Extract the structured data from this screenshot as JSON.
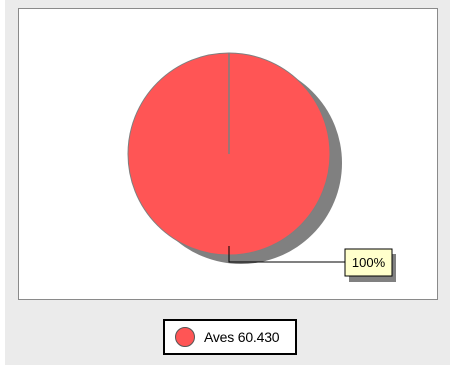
{
  "chart_data": {
    "type": "pie",
    "slices": [
      {
        "label": "Aves",
        "value": 60.43,
        "percent_label": "100%"
      }
    ],
    "legend": {
      "placement": "bottom",
      "entries": [
        "Aves 60.430"
      ]
    },
    "colors": {
      "slice": "#ff5555",
      "slice_edge": "#7f7f7f",
      "shadow": "#808080",
      "callout_fill": "#ffffcc",
      "background": "#ebebeb"
    }
  }
}
